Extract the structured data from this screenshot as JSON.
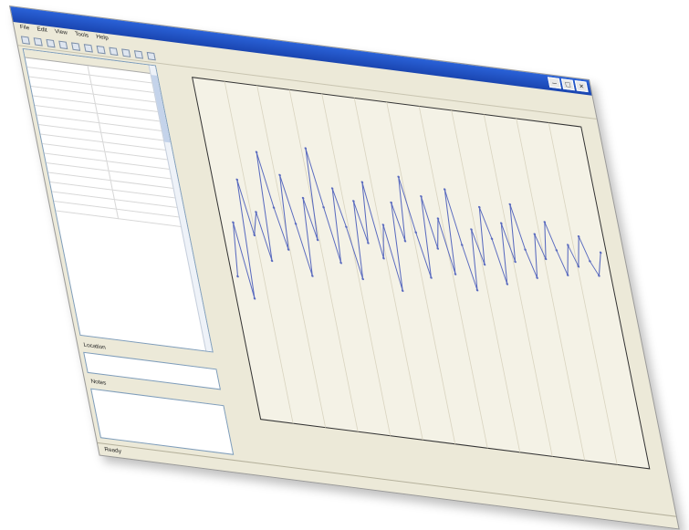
{
  "window": {
    "title": "",
    "status": "Ready"
  },
  "menu": [
    {
      "label": "File"
    },
    {
      "label": "Edit"
    },
    {
      "label": "View"
    },
    {
      "label": "Tools"
    },
    {
      "label": "Help"
    }
  ],
  "properties": {
    "rows": [
      [
        "",
        ""
      ],
      [
        "",
        ""
      ],
      [
        "",
        ""
      ],
      [
        "",
        ""
      ],
      [
        "",
        ""
      ],
      [
        "",
        ""
      ],
      [
        "",
        ""
      ],
      [
        "",
        ""
      ],
      [
        "",
        ""
      ],
      [
        "",
        ""
      ],
      [
        "",
        ""
      ],
      [
        "",
        ""
      ],
      [
        "",
        ""
      ],
      [
        "",
        ""
      ],
      [
        "",
        ""
      ],
      [
        "",
        ""
      ]
    ]
  },
  "fields": {
    "location_label": "Location",
    "notes_label": "Notes"
  },
  "chart_data": {
    "type": "line",
    "title": "",
    "xlabel": "",
    "ylabel": "",
    "marker": "",
    "colors": {
      "series": "#5a6bbf",
      "axis": "#333333",
      "grid": "#d9d4c0"
    },
    "series": [
      {
        "values": [
          0.42,
          0.58,
          0.36,
          0.71,
          0.55,
          0.62,
          0.48,
          0.8,
          0.64,
          0.52,
          0.74,
          0.6,
          0.45,
          0.68,
          0.56,
          0.83,
          0.66,
          0.5,
          0.72,
          0.61,
          0.46,
          0.69,
          0.57,
          0.75,
          0.53,
          0.63,
          0.44,
          0.7,
          0.59,
          0.78,
          0.62,
          0.49,
          0.73,
          0.58,
          0.67,
          0.51,
          0.76,
          0.6,
          0.47,
          0.65,
          0.55,
          0.72,
          0.63,
          0.5,
          0.68,
          0.57,
          0.74,
          0.61,
          0.53,
          0.66,
          0.59,
          0.7,
          0.62,
          0.55,
          0.64,
          0.58,
          0.67,
          0.6,
          0.56,
          0.63
        ]
      }
    ],
    "ylim": [
      0,
      1
    ],
    "grid": true
  }
}
